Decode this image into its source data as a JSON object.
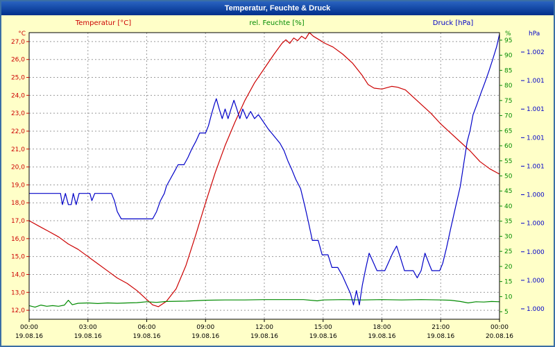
{
  "window": {
    "title": "Temperatur, Feuchte & Druck"
  },
  "colors": {
    "window_background": "#ffffc8",
    "titlebar_background": "#002f8b",
    "titlebar_text": "#ffffff",
    "plot_background": "#ffffff",
    "plot_border": "#000000",
    "grid": "#999999",
    "temperature": "#cc0000",
    "humidity": "#008a00",
    "pressure": "#0000c8"
  },
  "chart_data": {
    "type": "line",
    "title": "Temperatur, Feuchte & Druck",
    "grid": true,
    "legend_position": "top",
    "axes": {
      "x": {
        "range": [
          0,
          24
        ],
        "tick_hours": [
          0,
          3,
          6,
          9,
          12,
          15,
          18,
          21,
          24
        ],
        "grid_hours": [
          3,
          6,
          9,
          12,
          15,
          18,
          21
        ],
        "time_labels": [
          "00:00",
          "03:00",
          "06:00",
          "09:00",
          "12:00",
          "15:00",
          "18:00",
          "21:00",
          "00:00"
        ],
        "date_labels": [
          "19.08.16",
          "19.08.16",
          "19.08.16",
          "19.08.16",
          "19.08.16",
          "19.08.16",
          "19.08.16",
          "19.08.16",
          "20.08.16"
        ]
      },
      "temperature": {
        "title": "Temperatur [°C]",
        "unit": "°C",
        "color": "#cc0000",
        "range": [
          11.5,
          27.5
        ],
        "ticks": [
          27,
          26,
          25,
          24,
          23,
          22,
          21,
          20,
          19,
          18,
          17,
          16,
          15,
          14,
          13,
          12
        ],
        "tick_labels": [
          "27,0",
          "26,0",
          "25,0",
          "24,0",
          "23,0",
          "22,0",
          "21,0",
          "20,0",
          "19,0",
          "18,0",
          "17,0",
          "16,0",
          "15,0",
          "14,0",
          "13,0",
          "12,0"
        ]
      },
      "humidity": {
        "title": "rel. Feuchte [%]",
        "unit": "%",
        "color": "#008a00",
        "range": [
          2.5,
          97.5
        ],
        "ticks": [
          95,
          90,
          85,
          80,
          75,
          70,
          65,
          60,
          55,
          50,
          45,
          40,
          35,
          30,
          25,
          20,
          15,
          10,
          5
        ],
        "tick_labels": [
          "95",
          "90",
          "85",
          "80",
          "75",
          "70",
          "65",
          "60",
          "55",
          "50",
          "45",
          "40",
          "35",
          "30",
          "25",
          "20",
          "15",
          "10",
          "5"
        ]
      },
      "pressure": {
        "title": "Druck [hPa]",
        "unit": "hPa",
        "color": "#0000c8",
        "range": [
          999.2,
          1002.8
        ],
        "tick_labels": [
          "1.002",
          "1.001",
          "1.001",
          "1.001",
          "1.001",
          "1.000",
          "1.000",
          "1.000",
          "1.000",
          "1.000"
        ]
      }
    },
    "series": [
      {
        "name": "Temperatur",
        "axis": "temperature",
        "color": "#cc0000",
        "points": [
          [
            0,
            17.0
          ],
          [
            0.5,
            16.7
          ],
          [
            1,
            16.4
          ],
          [
            1.5,
            16.1
          ],
          [
            2,
            15.7
          ],
          [
            2.5,
            15.4
          ],
          [
            3,
            15.0
          ],
          [
            3.5,
            14.6
          ],
          [
            4,
            14.2
          ],
          [
            4.5,
            13.8
          ],
          [
            5,
            13.5
          ],
          [
            5.5,
            13.1
          ],
          [
            6,
            12.6
          ],
          [
            6.3,
            12.3
          ],
          [
            6.6,
            12.2
          ],
          [
            7,
            12.5
          ],
          [
            7.5,
            13.2
          ],
          [
            8,
            14.5
          ],
          [
            8.5,
            16.2
          ],
          [
            9,
            18.0
          ],
          [
            9.5,
            19.7
          ],
          [
            10,
            21.2
          ],
          [
            10.5,
            22.5
          ],
          [
            11,
            23.7
          ],
          [
            11.5,
            24.7
          ],
          [
            12,
            25.5
          ],
          [
            12.5,
            26.3
          ],
          [
            12.9,
            26.9
          ],
          [
            13.1,
            27.1
          ],
          [
            13.3,
            26.9
          ],
          [
            13.5,
            27.2
          ],
          [
            13.7,
            27.05
          ],
          [
            13.9,
            27.3
          ],
          [
            14.1,
            27.15
          ],
          [
            14.3,
            27.5
          ],
          [
            14.5,
            27.3
          ],
          [
            14.8,
            27.1
          ],
          [
            15.1,
            26.9
          ],
          [
            15.5,
            26.7
          ],
          [
            16,
            26.3
          ],
          [
            16.5,
            25.8
          ],
          [
            17,
            25.1
          ],
          [
            17.3,
            24.6
          ],
          [
            17.6,
            24.4
          ],
          [
            18,
            24.35
          ],
          [
            18.5,
            24.5
          ],
          [
            18.8,
            24.45
          ],
          [
            19.2,
            24.3
          ],
          [
            19.6,
            23.9
          ],
          [
            20,
            23.5
          ],
          [
            20.5,
            23.0
          ],
          [
            21,
            22.4
          ],
          [
            21.5,
            21.9
          ],
          [
            22,
            21.4
          ],
          [
            22.5,
            20.9
          ],
          [
            23,
            20.3
          ],
          [
            23.5,
            19.9
          ],
          [
            24,
            19.6
          ]
        ]
      },
      {
        "name": "rel. Feuchte",
        "axis": "humidity",
        "color": "#008a00",
        "points": [
          [
            0,
            7.0
          ],
          [
            0.3,
            6.5
          ],
          [
            0.6,
            7.2
          ],
          [
            0.9,
            6.8
          ],
          [
            1.2,
            7.0
          ],
          [
            1.5,
            6.8
          ],
          [
            1.8,
            7.2
          ],
          [
            2.0,
            8.8
          ],
          [
            2.2,
            7.3
          ],
          [
            2.5,
            7.8
          ],
          [
            3,
            7.9
          ],
          [
            3.5,
            7.7
          ],
          [
            4,
            7.9
          ],
          [
            4.5,
            7.8
          ],
          [
            5,
            7.9
          ],
          [
            5.5,
            8.0
          ],
          [
            6,
            8.3
          ],
          [
            6.5,
            8.1
          ],
          [
            7,
            8.4
          ],
          [
            8,
            8.5
          ],
          [
            9,
            8.8
          ],
          [
            10,
            8.9
          ],
          [
            11,
            8.9
          ],
          [
            12,
            9.0
          ],
          [
            13,
            9.0
          ],
          [
            14,
            9.0
          ],
          [
            14.7,
            8.6
          ],
          [
            15,
            8.9
          ],
          [
            16,
            9.0
          ],
          [
            17,
            8.9
          ],
          [
            18,
            9.0
          ],
          [
            19,
            8.9
          ],
          [
            20,
            9.0
          ],
          [
            21,
            8.9
          ],
          [
            21.5,
            8.8
          ],
          [
            22,
            8.4
          ],
          [
            22.4,
            7.9
          ],
          [
            22.8,
            8.3
          ],
          [
            23.2,
            8.2
          ],
          [
            23.6,
            8.4
          ],
          [
            24,
            8.3
          ]
        ]
      },
      {
        "name": "Druck",
        "axis": "pressure",
        "color": "#0000c8",
        "points": [
          [
            0,
            1000.78
          ],
          [
            1.6,
            1000.78
          ],
          [
            1.7,
            1000.64
          ],
          [
            1.85,
            1000.78
          ],
          [
            2.0,
            1000.64
          ],
          [
            2.15,
            1000.64
          ],
          [
            2.25,
            1000.78
          ],
          [
            2.4,
            1000.64
          ],
          [
            2.55,
            1000.78
          ],
          [
            3.1,
            1000.78
          ],
          [
            3.2,
            1000.69
          ],
          [
            3.35,
            1000.78
          ],
          [
            4.2,
            1000.78
          ],
          [
            4.35,
            1000.69
          ],
          [
            4.5,
            1000.55
          ],
          [
            4.7,
            1000.46
          ],
          [
            6.3,
            1000.46
          ],
          [
            6.5,
            1000.55
          ],
          [
            6.7,
            1000.69
          ],
          [
            6.9,
            1000.78
          ],
          [
            7.0,
            1000.87
          ],
          [
            7.2,
            1000.96
          ],
          [
            7.4,
            1001.05
          ],
          [
            7.6,
            1001.14
          ],
          [
            7.9,
            1001.14
          ],
          [
            8.1,
            1001.23
          ],
          [
            8.3,
            1001.34
          ],
          [
            8.5,
            1001.43
          ],
          [
            8.7,
            1001.54
          ],
          [
            9.0,
            1001.54
          ],
          [
            9.15,
            1001.63
          ],
          [
            9.3,
            1001.77
          ],
          [
            9.45,
            1001.9
          ],
          [
            9.55,
            1001.97
          ],
          [
            9.7,
            1001.84
          ],
          [
            9.85,
            1001.72
          ],
          [
            10.0,
            1001.84
          ],
          [
            10.15,
            1001.72
          ],
          [
            10.3,
            1001.84
          ],
          [
            10.45,
            1001.95
          ],
          [
            10.6,
            1001.84
          ],
          [
            10.75,
            1001.72
          ],
          [
            10.9,
            1001.84
          ],
          [
            11.1,
            1001.72
          ],
          [
            11.3,
            1001.81
          ],
          [
            11.5,
            1001.72
          ],
          [
            11.7,
            1001.77
          ],
          [
            11.95,
            1001.68
          ],
          [
            12.2,
            1001.59
          ],
          [
            12.5,
            1001.5
          ],
          [
            12.8,
            1001.41
          ],
          [
            13.0,
            1001.32
          ],
          [
            13.2,
            1001.19
          ],
          [
            13.4,
            1001.08
          ],
          [
            13.6,
            1000.96
          ],
          [
            13.85,
            1000.84
          ],
          [
            14.05,
            1000.64
          ],
          [
            14.25,
            1000.42
          ],
          [
            14.45,
            1000.19
          ],
          [
            14.75,
            1000.19
          ],
          [
            14.95,
            1000.01
          ],
          [
            15.25,
            1000.01
          ],
          [
            15.45,
            999.85
          ],
          [
            15.75,
            999.85
          ],
          [
            16.0,
            999.74
          ],
          [
            16.2,
            999.63
          ],
          [
            16.4,
            999.52
          ],
          [
            16.55,
            999.38
          ],
          [
            16.7,
            999.56
          ],
          [
            16.85,
            999.38
          ],
          [
            17.0,
            999.63
          ],
          [
            17.15,
            999.81
          ],
          [
            17.35,
            1000.03
          ],
          [
            17.55,
            999.92
          ],
          [
            17.75,
            999.81
          ],
          [
            18.15,
            999.81
          ],
          [
            18.35,
            999.92
          ],
          [
            18.55,
            1000.03
          ],
          [
            18.75,
            1000.12
          ],
          [
            18.95,
            999.97
          ],
          [
            19.15,
            999.81
          ],
          [
            19.6,
            999.81
          ],
          [
            19.8,
            999.72
          ],
          [
            20.0,
            999.81
          ],
          [
            20.2,
            1000.03
          ],
          [
            20.4,
            999.9
          ],
          [
            20.55,
            999.81
          ],
          [
            20.95,
            999.81
          ],
          [
            21.1,
            999.9
          ],
          [
            21.3,
            1000.1
          ],
          [
            21.5,
            1000.33
          ],
          [
            21.75,
            1000.6
          ],
          [
            22.0,
            1000.87
          ],
          [
            22.2,
            1001.19
          ],
          [
            22.35,
            1001.43
          ],
          [
            22.5,
            1001.57
          ],
          [
            22.65,
            1001.77
          ],
          [
            22.85,
            1001.9
          ],
          [
            23.05,
            1002.04
          ],
          [
            23.25,
            1002.17
          ],
          [
            23.45,
            1002.31
          ],
          [
            23.65,
            1002.46
          ],
          [
            23.85,
            1002.62
          ],
          [
            24.0,
            1002.78
          ]
        ]
      }
    ]
  }
}
